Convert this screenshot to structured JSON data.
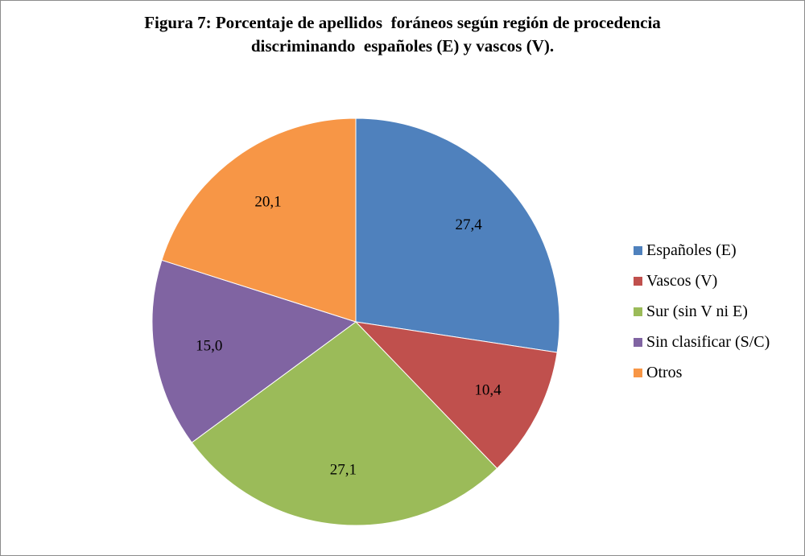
{
  "title": {
    "line1": "Figura 7: Porcentaje de apellidos  foráneos según región de procedencia",
    "line2": "discriminando  españoles (E) y vascos (V)."
  },
  "chart_data": {
    "type": "pie",
    "categories": [
      "Españoles (E)",
      "Vascos (V)",
      "Sur (sin V ni E)",
      "Sin clasificar (S/C)",
      "Otros"
    ],
    "values": [
      27.4,
      10.4,
      27.1,
      15.0,
      20.1
    ],
    "value_labels": [
      "27,4",
      "10,4",
      "27,1",
      "15,0",
      "20,1"
    ],
    "colors": [
      "#4f81bd",
      "#c0504d",
      "#9bbb59",
      "#8064a2",
      "#f79646"
    ],
    "legend_position": "right",
    "start": "12 o'clock, clockwise"
  }
}
